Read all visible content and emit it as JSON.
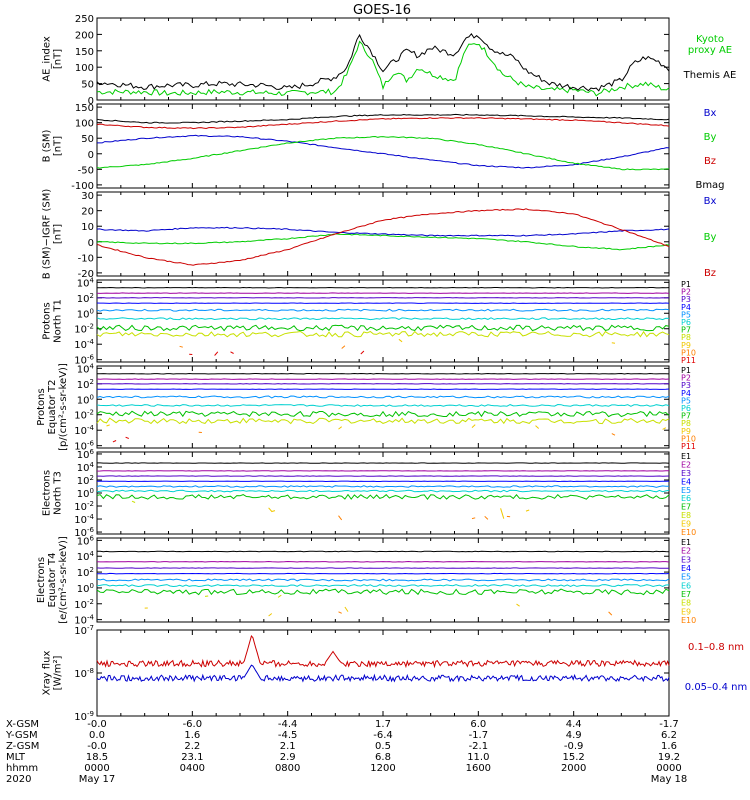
{
  "title": "GOES-16",
  "colors": {
    "black": "#000000",
    "red": "#cc0000",
    "green": "#00cc00",
    "blue": "#0000cc",
    "ch": [
      "#000000",
      "#a000a0",
      "#5000c8",
      "#0000ff",
      "#0090ff",
      "#00d0d0",
      "#00c000",
      "#c8e000",
      "#f0c800",
      "#ff8000",
      "#e00000"
    ]
  },
  "chart_data": [
    {
      "type": "line",
      "id": "ae",
      "ylabel": [
        "AE_index",
        "[nT]"
      ],
      "ylim": [
        0,
        250
      ],
      "yticks": [
        "0",
        "50",
        "100",
        "150",
        "200",
        "250"
      ],
      "ytick_values": [
        0,
        50,
        100,
        150,
        200,
        250
      ],
      "series": [
        {
          "name": "Kyoto proxy AE",
          "legend": [
            "Kyoto",
            "proxy AE"
          ],
          "color": "green",
          "x": [
            0,
            2,
            3,
            4,
            5,
            7,
            8,
            9,
            10,
            10.5,
            11,
            11.5,
            12,
            12.5,
            13,
            13.5,
            14,
            15,
            15.5,
            16,
            16.5,
            17,
            17.5,
            18,
            19,
            20,
            21,
            22,
            23,
            24
          ],
          "y": [
            25,
            25,
            20,
            22,
            25,
            22,
            20,
            25,
            25,
            80,
            175,
            130,
            40,
            90,
            60,
            100,
            80,
            60,
            160,
            175,
            130,
            80,
            60,
            40,
            30,
            30,
            20,
            40,
            50,
            30
          ]
        },
        {
          "name": "Themis AE",
          "legend": [
            "Themis AE"
          ],
          "color": "black",
          "x": [
            0,
            2,
            3,
            4,
            5,
            7,
            8,
            9,
            10,
            10.5,
            11,
            11.5,
            12,
            12.5,
            13,
            13.5,
            14,
            15,
            15.5,
            16,
            16.5,
            17,
            17.5,
            18,
            19,
            20,
            21,
            22,
            22.5,
            23,
            23.5,
            24
          ],
          "y": [
            55,
            40,
            45,
            45,
            50,
            45,
            35,
            50,
            70,
            100,
            200,
            150,
            90,
            120,
            150,
            135,
            160,
            140,
            190,
            200,
            160,
            140,
            130,
            90,
            50,
            40,
            35,
            60,
            110,
            130,
            120,
            95
          ]
        }
      ]
    },
    {
      "type": "line",
      "id": "bsm",
      "ylabel": [
        "B (SM)",
        "[nT]"
      ],
      "ylim": [
        -110,
        160
      ],
      "yticks": [
        "-100",
        "-50",
        "0",
        "50",
        "100",
        "150"
      ],
      "ytick_values": [
        -100,
        -50,
        0,
        50,
        100,
        150
      ],
      "series": [
        {
          "name": "Bx",
          "color": "blue",
          "x": [
            0,
            2,
            4,
            6,
            8,
            10,
            12,
            14,
            16,
            18,
            20,
            22,
            24
          ],
          "y": [
            35,
            50,
            58,
            55,
            40,
            20,
            0,
            -20,
            -38,
            -45,
            -35,
            -10,
            20
          ]
        },
        {
          "name": "By",
          "color": "green",
          "x": [
            0,
            2,
            4,
            6,
            8,
            10,
            12,
            14,
            16,
            18,
            20,
            22,
            24
          ],
          "y": [
            -45,
            -35,
            -15,
            10,
            35,
            50,
            55,
            50,
            30,
            0,
            -30,
            -50,
            -50
          ]
        },
        {
          "name": "Bz",
          "color": "red",
          "x": [
            0,
            2,
            4,
            6,
            8,
            10,
            12,
            14,
            16,
            18,
            20,
            22,
            24
          ],
          "y": [
            95,
            85,
            82,
            85,
            95,
            105,
            112,
            115,
            115,
            112,
            108,
            100,
            90
          ]
        },
        {
          "name": "Bmag",
          "color": "black",
          "x": [
            0,
            2,
            4,
            6,
            8,
            10,
            12,
            14,
            16,
            18,
            20,
            22,
            24
          ],
          "y": [
            110,
            100,
            100,
            105,
            110,
            120,
            125,
            125,
            125,
            122,
            118,
            115,
            110
          ]
        }
      ]
    },
    {
      "type": "line",
      "id": "bigrf",
      "ylabel": [
        "B (SM)−IGRF (SM)",
        "[nT]"
      ],
      "ylim": [
        -22,
        32
      ],
      "yticks": [
        "-20",
        "-10",
        "0",
        "10",
        "20",
        "30"
      ],
      "ytick_values": [
        -20,
        -10,
        0,
        10,
        20,
        30
      ],
      "series": [
        {
          "name": "Bx",
          "color": "blue",
          "x": [
            0,
            2,
            4,
            6,
            8,
            10,
            12,
            14,
            16,
            18,
            20,
            22,
            24
          ],
          "y": [
            8,
            7,
            9,
            9,
            8,
            6,
            5,
            4,
            4,
            4,
            5,
            7,
            8
          ]
        },
        {
          "name": "By",
          "color": "green",
          "x": [
            0,
            2,
            4,
            6,
            8,
            10,
            12,
            14,
            16,
            18,
            20,
            22,
            24
          ],
          "y": [
            0,
            -1,
            -1,
            0,
            2,
            5,
            4,
            3,
            2,
            0,
            -3,
            -5,
            -2
          ]
        },
        {
          "name": "Bz",
          "color": "red",
          "x": [
            0,
            2,
            4,
            6,
            8,
            10,
            12,
            14,
            16,
            18,
            20,
            22,
            24
          ],
          "y": [
            -2,
            -10,
            -15,
            -12,
            -5,
            5,
            14,
            18,
            20,
            21,
            18,
            8,
            -3
          ]
        }
      ]
    },
    {
      "type": "line",
      "id": "pnorth",
      "log": true,
      "ylabel": [
        "Protons",
        "North T1"
      ],
      "ylim": [
        -6.3,
        4.3
      ],
      "yticks": [
        "10^4",
        "10^2",
        "10^0",
        "10^-2",
        "10^-4",
        "10^-6"
      ],
      "ytick_values": [
        4,
        2,
        0,
        -2,
        -4,
        -6
      ],
      "series": [
        {
          "name": "P1",
          "level": 3.3
        },
        {
          "name": "P2",
          "level": 2.6
        },
        {
          "name": "P3",
          "level": 2.0
        },
        {
          "name": "P4",
          "level": 1.3
        },
        {
          "name": "P5",
          "level": 0.4
        },
        {
          "name": "P6",
          "level": -0.7
        },
        {
          "name": "P7",
          "level": -1.9
        },
        {
          "name": "P8",
          "level": -2.7
        },
        {
          "name": "P9",
          "level": -3.6
        },
        {
          "name": "P10",
          "level": -4.4
        },
        {
          "name": "P11",
          "level": -5.2
        }
      ]
    },
    {
      "type": "line",
      "id": "pequator",
      "log": true,
      "ylabel": [
        "Protons",
        "Equator T2",
        "[p/(cm²-s-sr-keV)]"
      ],
      "ylim": [
        -6.3,
        4.3
      ],
      "yticks": [
        "10^4",
        "10^2",
        "10^0",
        "10^-2",
        "10^-4",
        "10^-6"
      ],
      "ytick_values": [
        4,
        2,
        0,
        -2,
        -4,
        -6
      ],
      "series": [
        {
          "name": "P1",
          "level": 3.3
        },
        {
          "name": "P2",
          "level": 2.6
        },
        {
          "name": "P3",
          "level": 2.0
        },
        {
          "name": "P4",
          "level": 1.3
        },
        {
          "name": "P5",
          "level": 0.3
        },
        {
          "name": "P6",
          "level": -0.8
        },
        {
          "name": "P7",
          "level": -1.9
        },
        {
          "name": "P8",
          "level": -2.8
        },
        {
          "name": "P9",
          "level": -3.6
        },
        {
          "name": "P10",
          "level": -4.4
        },
        {
          "name": "P11",
          "level": -5.2
        }
      ]
    },
    {
      "type": "line",
      "id": "enorth",
      "log": true,
      "ylabel": [
        "Electrons",
        "North T3"
      ],
      "ylim": [
        -6.3,
        6.3
      ],
      "yticks": [
        "10^6",
        "10^4",
        "10^2",
        "10^0",
        "10^-2",
        "10^-4",
        "10^-6"
      ],
      "ytick_values": [
        6,
        4,
        2,
        0,
        -2,
        -4,
        -6
      ],
      "series": [
        {
          "name": "E1",
          "level": 4.6
        },
        {
          "name": "E2",
          "level": 3.4
        },
        {
          "name": "E3",
          "level": 2.6
        },
        {
          "name": "E4",
          "level": 1.8
        },
        {
          "name": "E5",
          "level": 1.0
        },
        {
          "name": "E6",
          "level": 0.3
        },
        {
          "name": "E7",
          "level": -0.6
        },
        {
          "name": "E8",
          "level": -1.4
        },
        {
          "name": "E9",
          "level": -2.6
        },
        {
          "name": "E10",
          "level": -3.8
        }
      ]
    },
    {
      "type": "line",
      "id": "eequator",
      "log": true,
      "ylabel": [
        "Electrons",
        "Equator T4",
        "[e/(cm²-s-sr-keV)]"
      ],
      "ylim": [
        -4.3,
        6.3
      ],
      "yticks": [
        "10^6",
        "10^4",
        "10^2",
        "10^0",
        "10^-2",
        "10^-4"
      ],
      "ytick_values": [
        6,
        4,
        2,
        0,
        -2,
        -4
      ],
      "series": [
        {
          "name": "E1",
          "level": 4.6
        },
        {
          "name": "E2",
          "level": 3.3
        },
        {
          "name": "E3",
          "level": 2.5
        },
        {
          "name": "E4",
          "level": 1.8
        },
        {
          "name": "E5",
          "level": 1.0
        },
        {
          "name": "E6",
          "level": 0.3
        },
        {
          "name": "E7",
          "level": -0.5
        },
        {
          "name": "E8",
          "level": -1.2
        },
        {
          "name": "E9",
          "level": -2.2
        },
        {
          "name": "E10",
          "level": -3.2
        }
      ]
    },
    {
      "type": "line",
      "id": "xray",
      "log": true,
      "ylabel": [
        "Xray flux",
        "[W/m²]"
      ],
      "ylim": [
        -9,
        -7
      ],
      "yticks": [
        "10^-7",
        "10^-8",
        "10^-9"
      ],
      "ytick_values": [
        -7,
        -8,
        -9
      ],
      "series": [
        {
          "name": "0.1–0.8 nm",
          "color": "red",
          "level": -7.78,
          "spikes": [
            {
              "x": 6.5,
              "y": -7.1
            },
            {
              "x": 9.9,
              "y": -7.5
            }
          ]
        },
        {
          "name": "0.05–0.4 nm",
          "color": "blue",
          "level": -8.12,
          "spikes": [
            {
              "x": 6.5,
              "y": -7.8
            }
          ]
        }
      ]
    }
  ],
  "xaxis": {
    "rows": [
      {
        "label": "X-GSM",
        "values": [
          "-0.0",
          "-6.0",
          "-4.4",
          "1.7",
          "6.0",
          "4.4",
          "-1.7"
        ]
      },
      {
        "label": "Y-GSM",
        "values": [
          "0.0",
          "1.6",
          "-4.5",
          "-6.4",
          "-1.7",
          "4.9",
          "6.2"
        ]
      },
      {
        "label": "Z-GSM",
        "values": [
          "-0.0",
          "2.2",
          "2.1",
          "0.5",
          "-2.1",
          "-0.9",
          "1.6"
        ]
      },
      {
        "label": "MLT",
        "values": [
          "18.5",
          "23.1",
          "2.9",
          "6.8",
          "11.0",
          "15.2",
          "19.2"
        ]
      },
      {
        "label": "hhmm",
        "values": [
          "0000",
          "0400",
          "0800",
          "1200",
          "1600",
          "2000",
          "0000"
        ]
      }
    ],
    "date_label": "2020",
    "date_start": "May 17",
    "date_end": "May 18"
  }
}
